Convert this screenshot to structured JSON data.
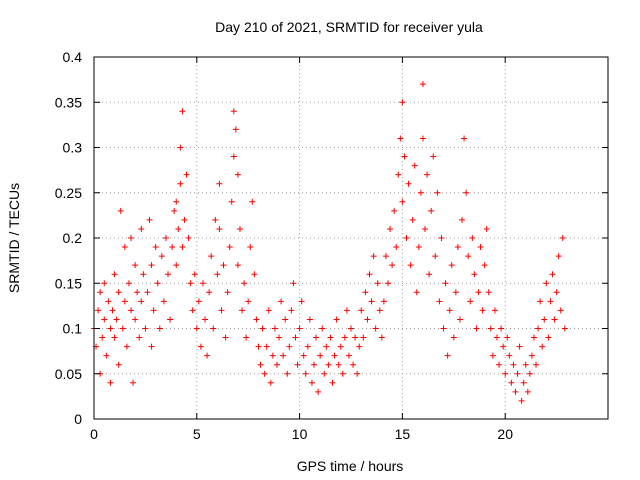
{
  "chart_data": {
    "type": "scatter",
    "title": "Day 210 of 2021, SRMTID for receiver yula",
    "xlabel": "GPS time / hours",
    "ylabel": "SRMTID / TECUs",
    "xlim": [
      0,
      25
    ],
    "ylim": [
      0,
      0.4
    ],
    "xticks": [
      0,
      5,
      10,
      15,
      20
    ],
    "yticks": [
      0,
      0.05,
      0.1,
      0.15,
      0.2,
      0.25,
      0.3,
      0.35,
      0.4
    ],
    "xtick_labels": [
      "0",
      "5",
      "10",
      "15",
      "20"
    ],
    "ytick_labels": [
      "0",
      "0.05",
      "0.1",
      "0.15",
      "0.2",
      "0.25",
      "0.3",
      "0.35",
      "0.4"
    ],
    "grid": true,
    "marker": "+",
    "color": "#ff0000",
    "series": [
      {
        "name": "SRMTID",
        "points": [
          [
            0.0,
            0.1
          ],
          [
            0.1,
            0.08
          ],
          [
            0.2,
            0.12
          ],
          [
            0.3,
            0.05
          ],
          [
            0.3,
            0.14
          ],
          [
            0.4,
            0.09
          ],
          [
            0.5,
            0.11
          ],
          [
            0.5,
            0.15
          ],
          [
            0.6,
            0.07
          ],
          [
            0.7,
            0.13
          ],
          [
            0.8,
            0.1
          ],
          [
            0.8,
            0.04
          ],
          [
            0.9,
            0.12
          ],
          [
            1.0,
            0.09
          ],
          [
            1.0,
            0.16
          ],
          [
            1.1,
            0.11
          ],
          [
            1.2,
            0.06
          ],
          [
            1.2,
            0.14
          ],
          [
            1.3,
            0.23
          ],
          [
            1.4,
            0.1
          ],
          [
            1.5,
            0.13
          ],
          [
            1.5,
            0.19
          ],
          [
            1.6,
            0.08
          ],
          [
            1.7,
            0.15
          ],
          [
            1.8,
            0.12
          ],
          [
            1.8,
            0.2
          ],
          [
            1.9,
            0.04
          ],
          [
            2.0,
            0.11
          ],
          [
            2.0,
            0.17
          ],
          [
            2.1,
            0.14
          ],
          [
            2.2,
            0.09
          ],
          [
            2.3,
            0.13
          ],
          [
            2.3,
            0.21
          ],
          [
            2.4,
            0.16
          ],
          [
            2.5,
            0.1
          ],
          [
            2.6,
            0.14
          ],
          [
            2.7,
            0.22
          ],
          [
            2.8,
            0.08
          ],
          [
            2.8,
            0.17
          ],
          [
            2.9,
            0.12
          ],
          [
            3.0,
            0.19
          ],
          [
            3.1,
            0.15
          ],
          [
            3.2,
            0.1
          ],
          [
            3.3,
            0.18
          ],
          [
            3.4,
            0.13
          ],
          [
            3.5,
            0.2
          ],
          [
            3.6,
            0.16
          ],
          [
            3.7,
            0.11
          ],
          [
            3.8,
            0.19
          ],
          [
            3.9,
            0.23
          ],
          [
            4.0,
            0.17
          ],
          [
            4.0,
            0.24
          ],
          [
            4.1,
            0.21
          ],
          [
            4.2,
            0.26
          ],
          [
            4.2,
            0.3
          ],
          [
            4.3,
            0.34
          ],
          [
            4.3,
            0.19
          ],
          [
            4.4,
            0.22
          ],
          [
            4.5,
            0.27
          ],
          [
            4.6,
            0.2
          ],
          [
            4.7,
            0.15
          ],
          [
            4.8,
            0.12
          ],
          [
            4.9,
            0.16
          ],
          [
            5.0,
            0.1
          ],
          [
            5.1,
            0.13
          ],
          [
            5.2,
            0.08
          ],
          [
            5.3,
            0.15
          ],
          [
            5.4,
            0.11
          ],
          [
            5.5,
            0.07
          ],
          [
            5.6,
            0.14
          ],
          [
            5.7,
            0.18
          ],
          [
            5.8,
            0.1
          ],
          [
            5.9,
            0.22
          ],
          [
            6.0,
            0.16
          ],
          [
            6.1,
            0.26
          ],
          [
            6.1,
            0.21
          ],
          [
            6.2,
            0.12
          ],
          [
            6.3,
            0.17
          ],
          [
            6.4,
            0.09
          ],
          [
            6.5,
            0.14
          ],
          [
            6.6,
            0.19
          ],
          [
            6.7,
            0.24
          ],
          [
            6.8,
            0.29
          ],
          [
            6.8,
            0.34
          ],
          [
            6.9,
            0.32
          ],
          [
            7.0,
            0.27
          ],
          [
            7.0,
            0.17
          ],
          [
            7.1,
            0.21
          ],
          [
            7.2,
            0.12
          ],
          [
            7.3,
            0.15
          ],
          [
            7.4,
            0.09
          ],
          [
            7.5,
            0.13
          ],
          [
            7.6,
            0.19
          ],
          [
            7.7,
            0.24
          ],
          [
            7.8,
            0.16
          ],
          [
            7.9,
            0.11
          ],
          [
            8.0,
            0.08
          ],
          [
            8.1,
            0.06
          ],
          [
            8.2,
            0.1
          ],
          [
            8.3,
            0.05
          ],
          [
            8.4,
            0.08
          ],
          [
            8.5,
            0.12
          ],
          [
            8.6,
            0.04
          ],
          [
            8.7,
            0.07
          ],
          [
            8.8,
            0.1
          ],
          [
            8.9,
            0.06
          ],
          [
            9.0,
            0.09
          ],
          [
            9.1,
            0.13
          ],
          [
            9.2,
            0.07
          ],
          [
            9.3,
            0.11
          ],
          [
            9.4,
            0.05
          ],
          [
            9.5,
            0.08
          ],
          [
            9.6,
            0.12
          ],
          [
            9.7,
            0.15
          ],
          [
            9.8,
            0.09
          ],
          [
            9.9,
            0.06
          ],
          [
            10.0,
            0.1
          ],
          [
            10.1,
            0.13
          ],
          [
            10.2,
            0.07
          ],
          [
            10.3,
            0.05
          ],
          [
            10.4,
            0.08
          ],
          [
            10.5,
            0.11
          ],
          [
            10.6,
            0.04
          ],
          [
            10.7,
            0.06
          ],
          [
            10.8,
            0.09
          ],
          [
            10.9,
            0.03
          ],
          [
            11.0,
            0.07
          ],
          [
            11.1,
            0.1
          ],
          [
            11.2,
            0.05
          ],
          [
            11.3,
            0.08
          ],
          [
            11.4,
            0.06
          ],
          [
            11.5,
            0.09
          ],
          [
            11.6,
            0.04
          ],
          [
            11.7,
            0.07
          ],
          [
            11.8,
            0.11
          ],
          [
            11.9,
            0.06
          ],
          [
            12.0,
            0.08
          ],
          [
            12.1,
            0.05
          ],
          [
            12.2,
            0.09
          ],
          [
            12.3,
            0.12
          ],
          [
            12.4,
            0.07
          ],
          [
            12.5,
            0.1
          ],
          [
            12.6,
            0.06
          ],
          [
            12.7,
            0.09
          ],
          [
            12.8,
            0.05
          ],
          [
            12.9,
            0.08
          ],
          [
            13.0,
            0.12
          ],
          [
            13.1,
            0.09
          ],
          [
            13.2,
            0.14
          ],
          [
            13.3,
            0.11
          ],
          [
            13.4,
            0.16
          ],
          [
            13.5,
            0.13
          ],
          [
            13.6,
            0.18
          ],
          [
            13.7,
            0.1
          ],
          [
            13.8,
            0.15
          ],
          [
            13.9,
            0.12
          ],
          [
            14.0,
            0.09
          ],
          [
            14.1,
            0.13
          ],
          [
            14.2,
            0.18
          ],
          [
            14.3,
            0.15
          ],
          [
            14.4,
            0.21
          ],
          [
            14.5,
            0.17
          ],
          [
            14.6,
            0.23
          ],
          [
            14.7,
            0.19
          ],
          [
            14.8,
            0.27
          ],
          [
            14.9,
            0.31
          ],
          [
            15.0,
            0.35
          ],
          [
            15.0,
            0.24
          ],
          [
            15.1,
            0.29
          ],
          [
            15.2,
            0.2
          ],
          [
            15.3,
            0.26
          ],
          [
            15.4,
            0.17
          ],
          [
            15.5,
            0.22
          ],
          [
            15.6,
            0.28
          ],
          [
            15.7,
            0.14
          ],
          [
            15.8,
            0.19
          ],
          [
            15.9,
            0.25
          ],
          [
            16.0,
            0.31
          ],
          [
            16.0,
            0.37
          ],
          [
            16.1,
            0.21
          ],
          [
            16.2,
            0.27
          ],
          [
            16.3,
            0.16
          ],
          [
            16.4,
            0.23
          ],
          [
            16.5,
            0.29
          ],
          [
            16.6,
            0.18
          ],
          [
            16.7,
            0.25
          ],
          [
            16.8,
            0.13
          ],
          [
            16.9,
            0.2
          ],
          [
            17.0,
            0.1
          ],
          [
            17.1,
            0.15
          ],
          [
            17.2,
            0.07
          ],
          [
            17.3,
            0.12
          ],
          [
            17.4,
            0.17
          ],
          [
            17.5,
            0.09
          ],
          [
            17.6,
            0.14
          ],
          [
            17.7,
            0.19
          ],
          [
            17.8,
            0.11
          ],
          [
            17.9,
            0.22
          ],
          [
            18.0,
            0.31
          ],
          [
            18.1,
            0.25
          ],
          [
            18.2,
            0.18
          ],
          [
            18.3,
            0.13
          ],
          [
            18.4,
            0.2
          ],
          [
            18.5,
            0.16
          ],
          [
            18.6,
            0.1
          ],
          [
            18.7,
            0.14
          ],
          [
            18.8,
            0.19
          ],
          [
            18.9,
            0.12
          ],
          [
            19.0,
            0.17
          ],
          [
            19.1,
            0.21
          ],
          [
            19.2,
            0.14
          ],
          [
            19.3,
            0.1
          ],
          [
            19.4,
            0.07
          ],
          [
            19.5,
            0.12
          ],
          [
            19.6,
            0.09
          ],
          [
            19.7,
            0.06
          ],
          [
            19.8,
            0.1
          ],
          [
            19.9,
            0.08
          ],
          [
            20.0,
            0.05
          ],
          [
            20.1,
            0.09
          ],
          [
            20.2,
            0.07
          ],
          [
            20.3,
            0.04
          ],
          [
            20.4,
            0.06
          ],
          [
            20.5,
            0.03
          ],
          [
            20.6,
            0.05
          ],
          [
            20.7,
            0.08
          ],
          [
            20.8,
            0.02
          ],
          [
            20.9,
            0.04
          ],
          [
            21.0,
            0.06
          ],
          [
            21.1,
            0.03
          ],
          [
            21.2,
            0.05
          ],
          [
            21.3,
            0.07
          ],
          [
            21.4,
            0.09
          ],
          [
            21.5,
            0.06
          ],
          [
            21.6,
            0.1
          ],
          [
            21.7,
            0.13
          ],
          [
            21.8,
            0.08
          ],
          [
            21.9,
            0.11
          ],
          [
            22.0,
            0.15
          ],
          [
            22.1,
            0.09
          ],
          [
            22.2,
            0.13
          ],
          [
            22.3,
            0.16
          ],
          [
            22.4,
            0.11
          ],
          [
            22.5,
            0.14
          ],
          [
            22.6,
            0.18
          ],
          [
            22.7,
            0.12
          ],
          [
            22.8,
            0.2
          ],
          [
            22.9,
            0.1
          ]
        ]
      }
    ]
  }
}
